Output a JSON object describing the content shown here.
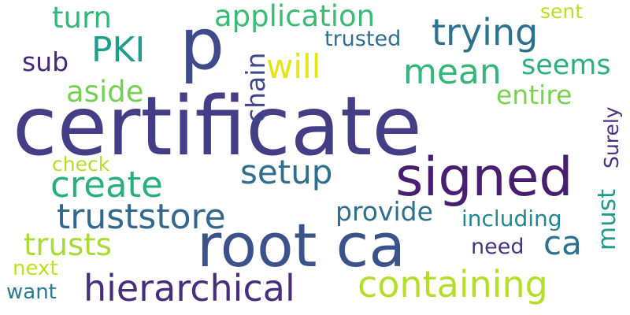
{
  "words": [
    {
      "text": "certificate",
      "color": "#433e85"
    },
    {
      "text": "root ca",
      "color": "#3b528b"
    },
    {
      "text": "signed",
      "color": "#481f70"
    },
    {
      "text": "p",
      "color": "#3e4a89"
    },
    {
      "text": "hierarchical",
      "color": "#472d7b"
    },
    {
      "text": "containing",
      "color": "#b5de2b"
    },
    {
      "text": "truststore",
      "color": "#31688e"
    },
    {
      "text": "trying",
      "color": "#2c728e"
    },
    {
      "text": "application",
      "color": "#3bbb75"
    },
    {
      "text": "create",
      "color": "#29af7f"
    },
    {
      "text": "setup",
      "color": "#2e6e8e"
    },
    {
      "text": "mean",
      "color": "#35b779"
    },
    {
      "text": "PKI",
      "color": "#1f9e89"
    },
    {
      "text": "will",
      "color": "#e5e419"
    },
    {
      "text": "trusts",
      "color": "#a8db34"
    },
    {
      "text": "ca",
      "color": "#2c728e"
    },
    {
      "text": "turn",
      "color": "#35b779"
    },
    {
      "text": "aside",
      "color": "#75d054"
    },
    {
      "text": "sub",
      "color": "#482878"
    },
    {
      "text": "seems",
      "color": "#2ab07f"
    },
    {
      "text": "entire",
      "color": "#7ad151"
    },
    {
      "text": "provide",
      "color": "#2e6f8e"
    },
    {
      "text": "chain",
      "color": "#3e4989"
    },
    {
      "text": "must",
      "color": "#1e9c89"
    },
    {
      "text": "including",
      "color": "#24868e"
    },
    {
      "text": "trusted",
      "color": "#2d708e"
    },
    {
      "text": "need",
      "color": "#453581"
    },
    {
      "text": "next",
      "color": "#bddf26"
    },
    {
      "text": "check",
      "color": "#b5de2b"
    },
    {
      "text": "want",
      "color": "#2a788e"
    },
    {
      "text": "Surely",
      "color": "#46327e"
    },
    {
      "text": "sent",
      "color": "#b8de29"
    }
  ]
}
